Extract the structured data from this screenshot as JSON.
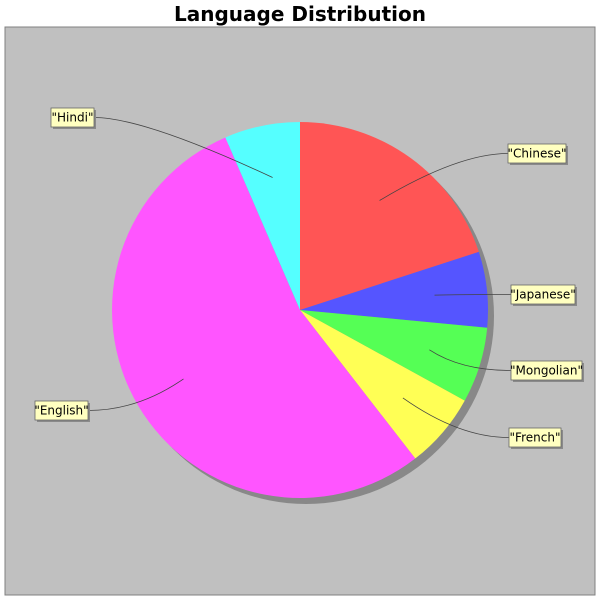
{
  "chart_data": {
    "type": "pie",
    "title": "Language Distribution",
    "slices": [
      {
        "label": "\"Chinese\"",
        "value": 20.0,
        "color": "#ff5555"
      },
      {
        "label": "\"Japanese\"",
        "value": 6.5,
        "color": "#5555ff"
      },
      {
        "label": "\"Mongolian\"",
        "value": 6.5,
        "color": "#55ff55"
      },
      {
        "label": "\"French\"",
        "value": 6.5,
        "color": "#ffff55"
      },
      {
        "label": "\"English\"",
        "value": 54.0,
        "color": "#ff55ff"
      },
      {
        "label": "\"Hindi\"",
        "value": 6.5,
        "color": "#55ffff"
      }
    ],
    "start_angle_deg": 90,
    "direction": "clockwise",
    "background": "#c0c0c0",
    "label_box_color": "#ffffc0",
    "legend": "none"
  }
}
